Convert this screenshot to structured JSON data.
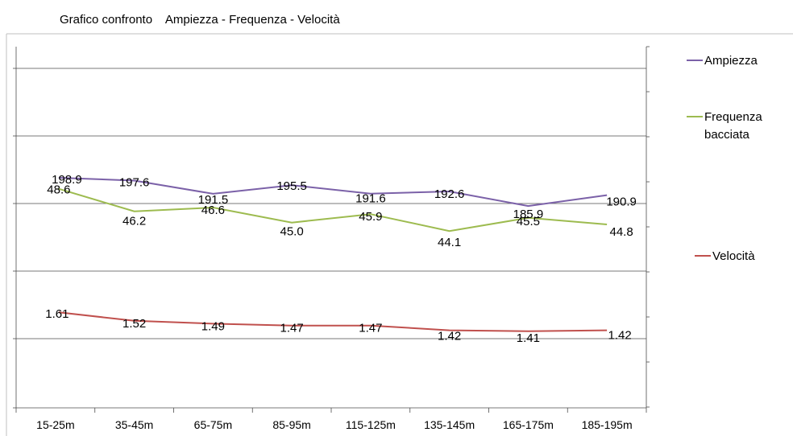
{
  "title": "Grafico confronto    Ampiezza - Frequenza - Velocità",
  "chart_data": {
    "type": "line",
    "title": "Grafico confronto    Ampiezza - Frequenza - Velocità",
    "categories": [
      "15-25m",
      "35-45m",
      "65-75m",
      "85-95m",
      "115-125m",
      "135-145m",
      "165-175m",
      "185-195m"
    ],
    "legend_position": "right",
    "grid": true,
    "series": [
      {
        "name": "Ampiezza",
        "color": "#7B61A8",
        "values": [
          198.9,
          197.6,
          191.5,
          195.5,
          191.6,
          192.6,
          185.9,
          190.9
        ],
        "labels": [
          "198.9",
          "197.6",
          "191.5",
          "195.5",
          "191.6",
          "192.6",
          "185.9",
          "190.9"
        ]
      },
      {
        "name": "Frequenza bacciata",
        "legend_lines": [
          "Frequenza",
          "bacciata"
        ],
        "color": "#9DBB4F",
        "values": [
          48.6,
          46.2,
          46.6,
          45.0,
          45.9,
          44.1,
          45.5,
          44.8
        ],
        "labels": [
          "48.6",
          "46.2",
          "46.6",
          "45.0",
          "45.9",
          "44.1",
          "45.5",
          "44.8"
        ]
      },
      {
        "name": "Velocità",
        "color": "#C0504D",
        "values": [
          1.61,
          1.52,
          1.49,
          1.47,
          1.47,
          1.42,
          1.41,
          1.42
        ],
        "labels": [
          "1.61",
          "1.52",
          "1.49",
          "1.47",
          "1.47",
          "1.42",
          "1.41",
          "1.42"
        ]
      }
    ]
  }
}
